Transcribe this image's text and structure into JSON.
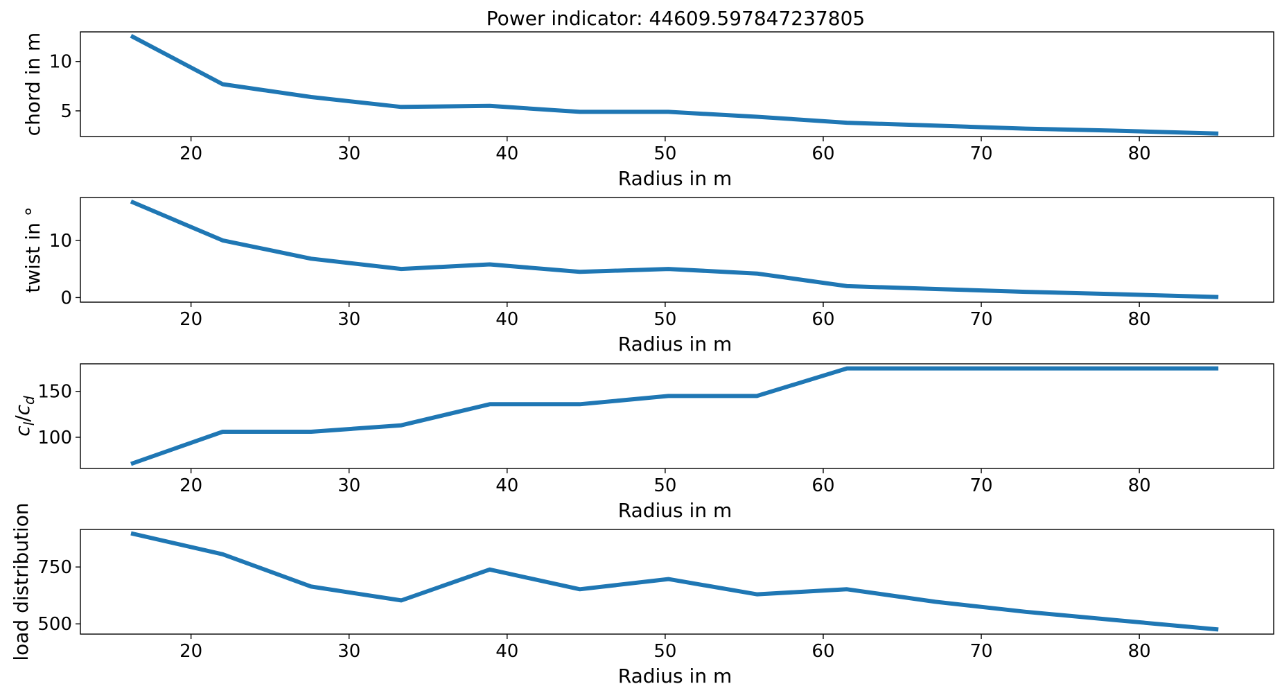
{
  "title": "Power indicator: 44609.597847237805",
  "colors": {
    "series": "#1f77b4"
  },
  "chart_data": [
    {
      "type": "line",
      "xlabel": "Radius in m",
      "ylabel": "chord in m",
      "xlim": [
        13,
        88.5
      ],
      "ylim": [
        2.4,
        13.0
      ],
      "xticks": [
        20,
        30,
        40,
        50,
        60,
        70,
        80
      ],
      "yticks": [
        5,
        10
      ],
      "x": [
        16.2,
        22.0,
        27.6,
        33.3,
        38.9,
        44.6,
        50.2,
        55.8,
        61.5,
        67.1,
        72.8,
        78.4,
        85.0
      ],
      "values": [
        12.6,
        7.7,
        6.4,
        5.4,
        5.5,
        4.9,
        4.9,
        4.4,
        3.8,
        3.5,
        3.2,
        3.0,
        2.7
      ]
    },
    {
      "type": "line",
      "xlabel": "Radius in m",
      "ylabel": "twist in °",
      "xlim": [
        13,
        88.5
      ],
      "ylim": [
        -0.8,
        17.5
      ],
      "xticks": [
        20,
        30,
        40,
        50,
        60,
        70,
        80
      ],
      "yticks": [
        0,
        10
      ],
      "x": [
        16.2,
        22.0,
        27.6,
        33.3,
        38.9,
        44.6,
        50.2,
        55.8,
        61.5,
        67.1,
        72.8,
        78.4,
        85.0
      ],
      "values": [
        16.8,
        10.0,
        6.8,
        5.0,
        5.8,
        4.5,
        5.0,
        4.2,
        2.0,
        1.5,
        1.0,
        0.6,
        0.1
      ]
    },
    {
      "type": "line",
      "xlabel": "Radius in m",
      "ylabel": "c_l/c_d",
      "ylabel_parts": {
        "a": "c",
        "a_sub": "l",
        "sep": "/",
        "b": "c",
        "b_sub": "d"
      },
      "xlim": [
        13,
        88.5
      ],
      "ylim": [
        66,
        180
      ],
      "xticks": [
        20,
        30,
        40,
        50,
        60,
        70,
        80
      ],
      "yticks": [
        100,
        150
      ],
      "x": [
        16.2,
        22.0,
        27.6,
        33.3,
        38.9,
        44.6,
        50.2,
        55.8,
        61.5,
        67.1,
        72.8,
        78.4,
        85.0
      ],
      "values": [
        71,
        106,
        106,
        113,
        136,
        136,
        145,
        145,
        175,
        175,
        175,
        175,
        175
      ]
    },
    {
      "type": "line",
      "xlabel": "Radius in m",
      "ylabel": "load distribution",
      "xlim": [
        13,
        88.5
      ],
      "ylim": [
        455,
        915
      ],
      "xticks": [
        20,
        30,
        40,
        50,
        60,
        70,
        80
      ],
      "yticks": [
        500,
        750
      ],
      "x": [
        16.2,
        22.0,
        27.6,
        33.3,
        38.9,
        44.6,
        50.2,
        55.8,
        61.5,
        67.1,
        72.8,
        78.4,
        85.0
      ],
      "values": [
        898,
        806,
        664,
        603,
        739,
        652,
        697,
        630,
        652,
        597,
        553,
        517,
        475
      ]
    }
  ]
}
